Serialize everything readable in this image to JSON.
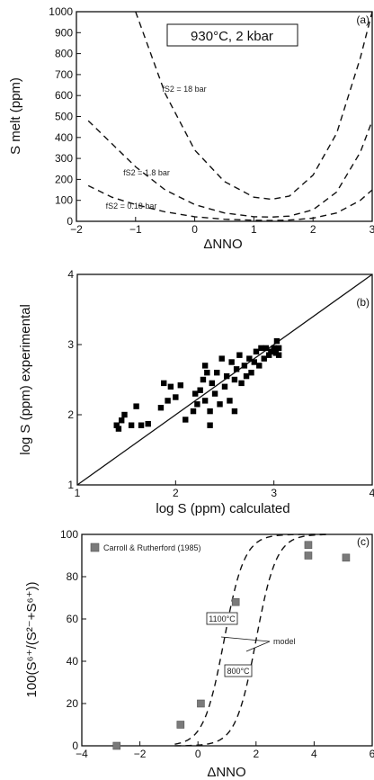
{
  "chart_data": [
    {
      "type": "line",
      "panel_label": "(a)",
      "annotation": "930°C, 2 kbar",
      "xlabel": "ΔNNO",
      "ylabel": "S melt (ppm)",
      "xlim": [
        -2,
        3
      ],
      "ylim": [
        0,
        1000
      ],
      "xticks": [
        "−2",
        "−1",
        "0",
        "1",
        "2",
        "3"
      ],
      "yticks": [
        "0",
        "100",
        "200",
        "300",
        "400",
        "500",
        "600",
        "700",
        "800",
        "900",
        "1000"
      ],
      "series": [
        {
          "name": "fS2 = 18 bar",
          "line_style": "dashed",
          "x": [
            -1.0,
            -0.5,
            0,
            0.5,
            1.0,
            1.3,
            1.6,
            2.0,
            2.4,
            2.8,
            3.0
          ],
          "y": [
            1000,
            610,
            340,
            190,
            115,
            105,
            120,
            220,
            420,
            780,
            1000
          ]
        },
        {
          "name": "fS2 = 1.8 bar",
          "line_style": "dashed",
          "x": [
            -1.8,
            -1.4,
            -1.0,
            -0.5,
            0,
            0.5,
            1.0,
            1.3,
            1.6,
            2.0,
            2.4,
            2.8,
            3.0
          ],
          "y": [
            480,
            370,
            260,
            150,
            80,
            40,
            22,
            20,
            25,
            55,
            140,
            330,
            480
          ]
        },
        {
          "name": "fS2 = 0.18 bar",
          "line_style": "dashed",
          "x": [
            -1.8,
            -1.4,
            -1.0,
            -0.5,
            0,
            0.5,
            1.0,
            1.3,
            1.6,
            2.0,
            2.4,
            2.8,
            3.0
          ],
          "y": [
            170,
            115,
            80,
            45,
            22,
            10,
            5,
            4,
            6,
            15,
            40,
            100,
            150
          ]
        }
      ]
    },
    {
      "type": "scatter",
      "panel_label": "(b)",
      "xlabel": "log S (ppm) calculated",
      "ylabel": "log S (ppm) experimental",
      "xlim": [
        1,
        4
      ],
      "ylim": [
        1,
        4
      ],
      "xticks": [
        "1",
        "2",
        "3",
        "4"
      ],
      "yticks": [
        "1",
        "2",
        "3",
        "4"
      ],
      "reference_line": "1:1",
      "points": [
        [
          1.4,
          1.85
        ],
        [
          1.42,
          1.8
        ],
        [
          1.45,
          1.92
        ],
        [
          1.48,
          2.0
        ],
        [
          1.55,
          1.85
        ],
        [
          1.6,
          2.12
        ],
        [
          1.65,
          1.85
        ],
        [
          1.72,
          1.87
        ],
        [
          1.85,
          2.1
        ],
        [
          1.88,
          2.45
        ],
        [
          1.92,
          2.2
        ],
        [
          1.95,
          2.4
        ],
        [
          2.0,
          2.25
        ],
        [
          2.05,
          2.42
        ],
        [
          2.1,
          1.93
        ],
        [
          2.18,
          2.05
        ],
        [
          2.2,
          2.3
        ],
        [
          2.22,
          2.15
        ],
        [
          2.25,
          2.35
        ],
        [
          2.28,
          2.5
        ],
        [
          2.3,
          2.7
        ],
        [
          2.3,
          2.2
        ],
        [
          2.32,
          2.6
        ],
        [
          2.35,
          1.85
        ],
        [
          2.35,
          2.05
        ],
        [
          2.37,
          2.45
        ],
        [
          2.4,
          2.3
        ],
        [
          2.42,
          2.6
        ],
        [
          2.45,
          2.15
        ],
        [
          2.47,
          2.8
        ],
        [
          2.5,
          2.4
        ],
        [
          2.52,
          2.55
        ],
        [
          2.55,
          2.2
        ],
        [
          2.57,
          2.75
        ],
        [
          2.6,
          2.5
        ],
        [
          2.6,
          2.05
        ],
        [
          2.62,
          2.65
        ],
        [
          2.65,
          2.85
        ],
        [
          2.67,
          2.45
        ],
        [
          2.7,
          2.7
        ],
        [
          2.72,
          2.55
        ],
        [
          2.75,
          2.8
        ],
        [
          2.77,
          2.6
        ],
        [
          2.8,
          2.75
        ],
        [
          2.82,
          2.9
        ],
        [
          2.85,
          2.7
        ],
        [
          2.87,
          2.95
        ],
        [
          2.9,
          2.8
        ],
        [
          2.92,
          2.95
        ],
        [
          2.95,
          2.85
        ],
        [
          2.97,
          2.9
        ],
        [
          3.0,
          2.95
        ],
        [
          3.02,
          2.88
        ],
        [
          3.03,
          3.05
        ],
        [
          3.05,
          2.95
        ],
        [
          3.05,
          2.85
        ]
      ]
    },
    {
      "type": "scatter",
      "panel_label": "(c)",
      "xlabel": "ΔNNO",
      "ylabel": "100(S⁶⁺/(S²⁻+S⁶⁺))",
      "xlim": [
        -4,
        6
      ],
      "ylim": [
        0,
        100
      ],
      "xticks": [
        "−4",
        "−2",
        "0",
        "2",
        "4",
        "6"
      ],
      "yticks": [
        "0",
        "20",
        "40",
        "60",
        "80",
        "100"
      ],
      "legend": "Carroll & Rutherford (1985)",
      "points": [
        [
          -2.8,
          0
        ],
        [
          -0.6,
          10
        ],
        [
          0.1,
          20
        ],
        [
          1.3,
          68
        ],
        [
          3.8,
          95
        ],
        [
          3.8,
          90
        ],
        [
          5.1,
          89
        ]
      ],
      "model_curves": [
        {
          "name": "1100°C",
          "midpoint": 0.9,
          "width": 0.35
        },
        {
          "name": "800°C",
          "midpoint": 2.0,
          "width": 0.35
        }
      ],
      "model_label": "model"
    }
  ]
}
